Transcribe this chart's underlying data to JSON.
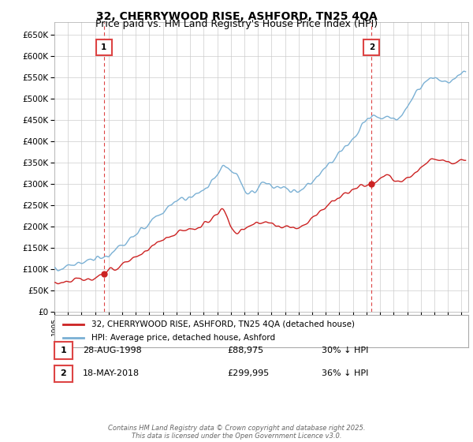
{
  "title": "32, CHERRYWOOD RISE, ASHFORD, TN25 4QA",
  "subtitle": "Price paid vs. HM Land Registry's House Price Index (HPI)",
  "ylim": [
    0,
    680000
  ],
  "yticks": [
    0,
    50000,
    100000,
    150000,
    200000,
    250000,
    300000,
    350000,
    400000,
    450000,
    500000,
    550000,
    600000,
    650000
  ],
  "ytick_labels": [
    "£0",
    "£50K",
    "£100K",
    "£150K",
    "£200K",
    "£250K",
    "£300K",
    "£350K",
    "£400K",
    "£450K",
    "£500K",
    "£550K",
    "£600K",
    "£650K"
  ],
  "xlim_start": 1995.0,
  "xlim_end": 2025.5,
  "xticks": [
    1995,
    1996,
    1997,
    1998,
    1999,
    2000,
    2001,
    2002,
    2003,
    2004,
    2005,
    2006,
    2007,
    2008,
    2009,
    2010,
    2011,
    2012,
    2013,
    2014,
    2015,
    2016,
    2017,
    2018,
    2019,
    2020,
    2021,
    2022,
    2023,
    2024,
    2025
  ],
  "purchase1_x": 1998.65,
  "purchase1_y": 88975,
  "purchase1_label": "1",
  "purchase1_date": "28-AUG-1998",
  "purchase1_price": "£88,975",
  "purchase1_hpi": "30% ↓ HPI",
  "purchase2_x": 2018.37,
  "purchase2_y": 299995,
  "purchase2_label": "2",
  "purchase2_date": "18-MAY-2018",
  "purchase2_price": "£299,995",
  "purchase2_hpi": "36% ↓ HPI",
  "line_color_red": "#cc2222",
  "line_color_blue": "#7ab0d4",
  "vline_color": "#dd4444",
  "grid_color": "#cccccc",
  "bg_color": "#ffffff",
  "legend_label_red": "32, CHERRYWOOD RISE, ASHFORD, TN25 4QA (detached house)",
  "legend_label_blue": "HPI: Average price, detached house, Ashford",
  "footer": "Contains HM Land Registry data © Crown copyright and database right 2025.\nThis data is licensed under the Open Government Licence v3.0.",
  "title_fontsize": 10,
  "subtitle_fontsize": 9
}
